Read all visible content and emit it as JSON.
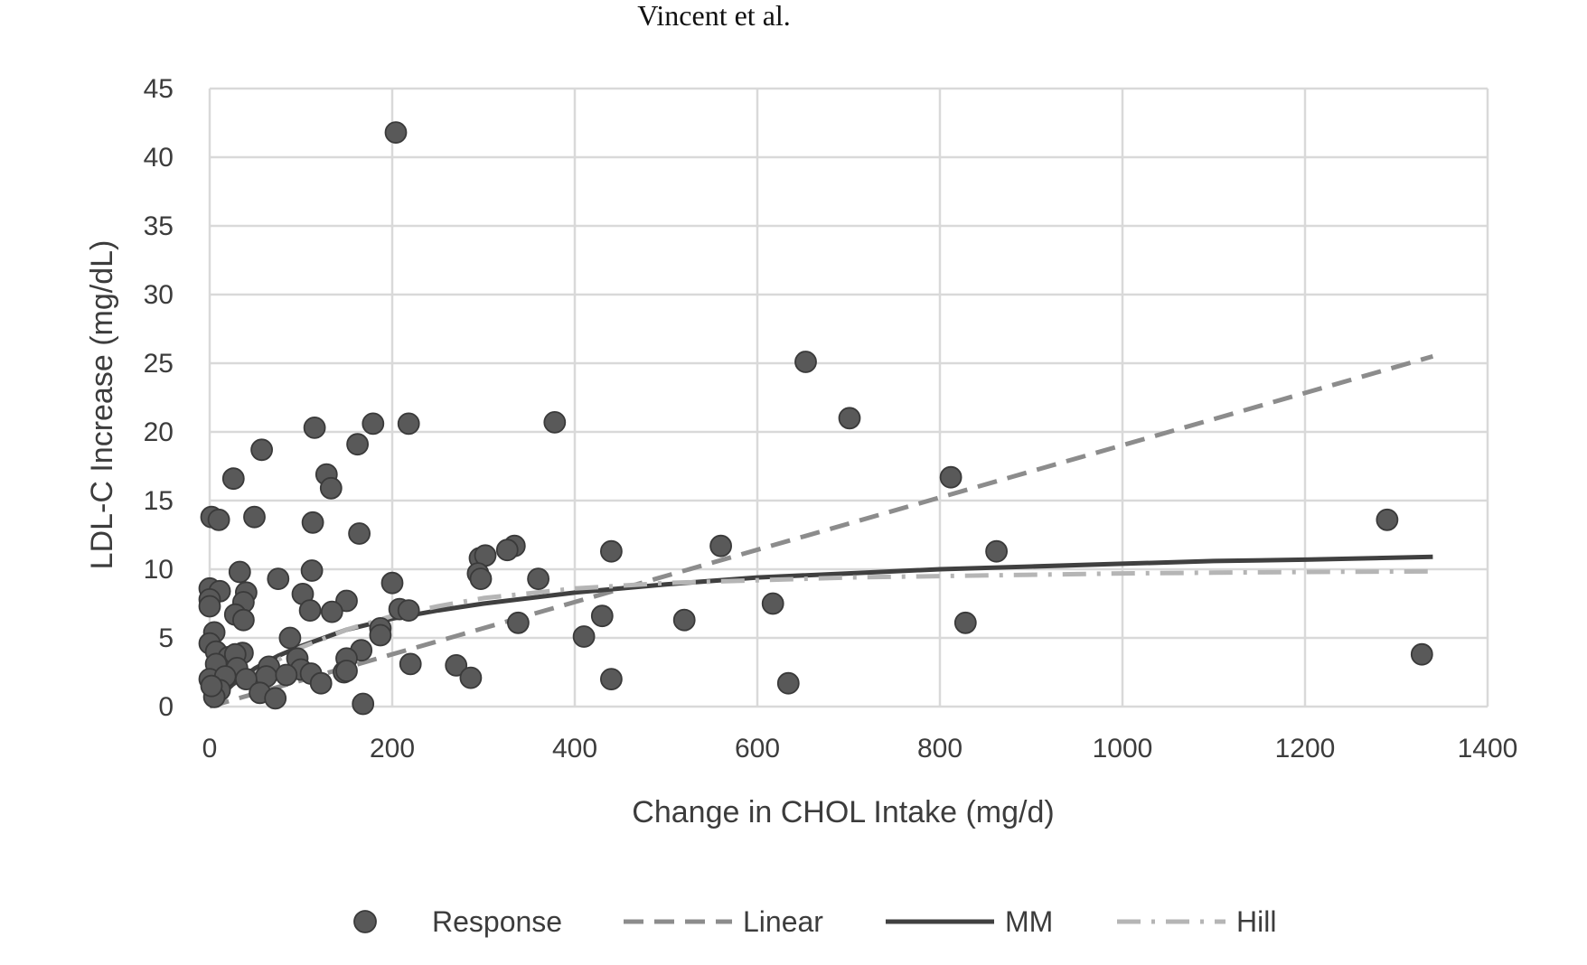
{
  "header": {
    "text": "Vincent et al."
  },
  "chart_data": {
    "type": "scatter",
    "title": "",
    "xlabel": "Change in CHOL Intake (mg/d)",
    "ylabel": "LDL-C Increase (mg/dL)",
    "xlim": [
      0,
      1400
    ],
    "ylim": [
      0,
      45
    ],
    "xticks": [
      0,
      200,
      400,
      600,
      800,
      1000,
      1200,
      1400
    ],
    "yticks": [
      0,
      5,
      10,
      15,
      20,
      25,
      30,
      35,
      40,
      45
    ],
    "grid": true,
    "legend_position": "bottom",
    "colors": {
      "response": "#595959",
      "linear": "#8c8c8c",
      "mm": "#404040",
      "hill": "#b5b5b5",
      "grid": "#d9d9d9"
    },
    "series": [
      {
        "name": "Response",
        "kind": "scatter",
        "points": [
          [
            204,
            41.8
          ],
          [
            653,
            25.1
          ],
          [
            701,
            21.0
          ],
          [
            378,
            20.7
          ],
          [
            218,
            20.6
          ],
          [
            179,
            20.6
          ],
          [
            115,
            20.3
          ],
          [
            162,
            19.1
          ],
          [
            57,
            18.7
          ],
          [
            26,
            16.6
          ],
          [
            128,
            16.9
          ],
          [
            133,
            15.9
          ],
          [
            812,
            16.7
          ],
          [
            1290,
            13.6
          ],
          [
            2,
            13.8
          ],
          [
            10,
            13.6
          ],
          [
            49,
            13.8
          ],
          [
            113,
            13.4
          ],
          [
            164,
            12.6
          ],
          [
            334,
            11.7
          ],
          [
            326,
            11.4
          ],
          [
            440,
            11.3
          ],
          [
            560,
            11.7
          ],
          [
            862,
            11.3
          ],
          [
            296,
            10.8
          ],
          [
            302,
            11.0
          ],
          [
            112,
            9.9
          ],
          [
            33,
            9.8
          ],
          [
            75,
            9.3
          ],
          [
            294,
            9.7
          ],
          [
            297,
            9.3
          ],
          [
            360,
            9.3
          ],
          [
            200,
            9.0
          ],
          [
            0,
            8.6
          ],
          [
            11,
            8.4
          ],
          [
            40,
            8.3
          ],
          [
            102,
            8.2
          ],
          [
            0,
            7.8
          ],
          [
            37,
            7.6
          ],
          [
            150,
            7.7
          ],
          [
            208,
            7.1
          ],
          [
            218,
            7.0
          ],
          [
            110,
            7.0
          ],
          [
            134,
            6.9
          ],
          [
            0,
            7.3
          ],
          [
            28,
            6.7
          ],
          [
            37,
            6.3
          ],
          [
            338,
            6.1
          ],
          [
            430,
            6.6
          ],
          [
            520,
            6.3
          ],
          [
            617,
            7.5
          ],
          [
            828,
            6.1
          ],
          [
            187,
            5.7
          ],
          [
            5,
            5.4
          ],
          [
            187,
            5.2
          ],
          [
            88,
            5.0
          ],
          [
            410,
            5.1
          ],
          [
            0,
            4.6
          ],
          [
            7,
            4.0
          ],
          [
            36,
            3.9
          ],
          [
            166,
            4.1
          ],
          [
            21,
            3.6
          ],
          [
            28,
            3.8
          ],
          [
            96,
            3.5
          ],
          [
            150,
            3.5
          ],
          [
            1328,
            3.8
          ],
          [
            220,
            3.1
          ],
          [
            270,
            3.0
          ],
          [
            7,
            3.1
          ],
          [
            30,
            2.8
          ],
          [
            65,
            2.9
          ],
          [
            100,
            2.7
          ],
          [
            111,
            2.4
          ],
          [
            147,
            2.5
          ],
          [
            150,
            2.6
          ],
          [
            62,
            2.2
          ],
          [
            84,
            2.3
          ],
          [
            0,
            2.0
          ],
          [
            17,
            2.2
          ],
          [
            40,
            2.0
          ],
          [
            286,
            2.1
          ],
          [
            440,
            2.0
          ],
          [
            11,
            1.2
          ],
          [
            122,
            1.7
          ],
          [
            634,
            1.7
          ],
          [
            55,
            1.0
          ],
          [
            5,
            0.7
          ],
          [
            72,
            0.6
          ],
          [
            168,
            0.2
          ],
          [
            2,
            1.5
          ]
        ]
      },
      {
        "name": "Linear",
        "kind": "line",
        "x": [
          0,
          1340
        ],
        "y": [
          0,
          25.5
        ]
      },
      {
        "name": "MM",
        "kind": "line",
        "x": [
          0,
          25,
          50,
          75,
          100,
          150,
          200,
          250,
          300,
          400,
          500,
          600,
          700,
          800,
          900,
          1000,
          1100,
          1200,
          1340
        ],
        "y": [
          0,
          1.6,
          2.8,
          3.7,
          4.4,
          5.6,
          6.4,
          7.0,
          7.5,
          8.3,
          8.9,
          9.4,
          9.7,
          10.0,
          10.2,
          10.4,
          10.6,
          10.7,
          10.9
        ]
      },
      {
        "name": "Hill",
        "kind": "line",
        "x": [
          0,
          25,
          50,
          75,
          100,
          150,
          200,
          250,
          300,
          400,
          500,
          600,
          700,
          800,
          900,
          1000,
          1100,
          1200,
          1340
        ],
        "y": [
          0,
          1.2,
          2.4,
          3.4,
          4.3,
          5.6,
          6.6,
          7.3,
          7.9,
          8.6,
          9.0,
          9.2,
          9.4,
          9.5,
          9.6,
          9.7,
          9.75,
          9.8,
          9.85
        ]
      }
    ]
  }
}
